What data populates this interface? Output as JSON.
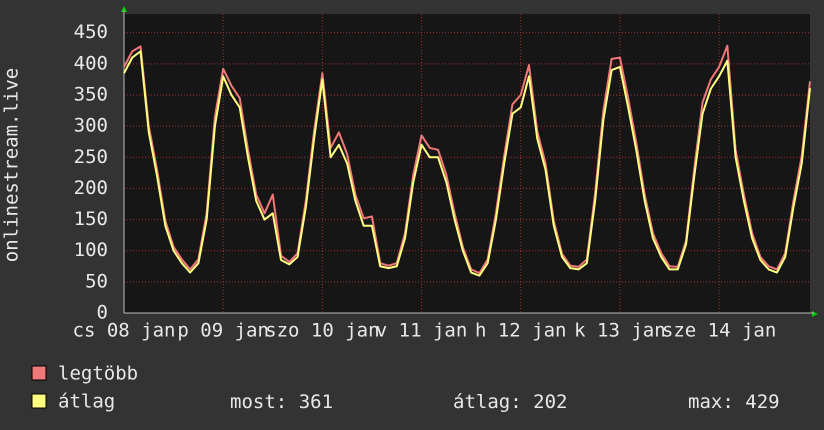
{
  "chart_data": {
    "type": "line",
    "y_label": "onlinestream.live",
    "x": [
      0,
      2,
      4,
      6,
      8,
      10,
      12,
      14,
      16,
      18,
      20,
      22,
      24,
      26,
      28,
      30,
      32,
      34,
      36,
      38,
      40,
      42,
      44,
      46,
      48,
      50,
      52,
      54,
      56,
      58,
      60,
      62,
      64,
      66,
      68,
      70,
      72,
      74,
      76,
      78,
      80,
      82,
      84,
      86,
      88,
      90,
      92,
      94,
      96,
      98,
      100,
      102,
      104,
      106,
      108,
      110,
      112,
      114,
      116,
      118,
      120,
      122,
      124,
      126,
      128,
      130,
      132,
      134,
      136,
      138,
      140,
      142,
      144,
      146,
      148,
      150,
      152,
      154,
      156,
      158,
      160,
      162,
      164,
      166
    ],
    "xlim": [
      0,
      166
    ],
    "xticks": [
      {
        "value": 0,
        "label": "cs 08 jan"
      },
      {
        "value": 24,
        "label": "p 09 jan"
      },
      {
        "value": 48,
        "label": "szo 10 jan"
      },
      {
        "value": 72,
        "label": "v 11 jan"
      },
      {
        "value": 96,
        "label": "h 12 jan"
      },
      {
        "value": 120,
        "label": "k 13 jan"
      },
      {
        "value": 144,
        "label": "sze 14 jan"
      }
    ],
    "ylim": [
      0,
      480
    ],
    "yticks": [
      0,
      50,
      100,
      150,
      200,
      250,
      300,
      350,
      400,
      450
    ],
    "grid": true,
    "series": [
      {
        "name": "legtöbb",
        "color": "#f07878",
        "values": [
          395,
          420,
          428,
          300,
          230,
          148,
          106,
          86,
          70,
          86,
          160,
          315,
          392,
          365,
          345,
          262,
          190,
          160,
          190,
          92,
          82,
          96,
          180,
          292,
          385,
          265,
          290,
          255,
          190,
          152,
          155,
          80,
          76,
          80,
          128,
          222,
          285,
          265,
          262,
          222,
          160,
          106,
          70,
          64,
          86,
          160,
          252,
          335,
          350,
          398,
          292,
          240,
          148,
          95,
          76,
          74,
          86,
          192,
          325,
          408,
          410,
          345,
          272,
          190,
          128,
          96,
          75,
          74,
          116,
          232,
          338,
          375,
          395,
          429,
          262,
          190,
          128,
          90,
          75,
          70,
          96,
          180,
          252,
          372
        ]
      },
      {
        "name": "átlag",
        "color": "#ffff80",
        "values": [
          385,
          410,
          420,
          290,
          220,
          140,
          100,
          80,
          65,
          80,
          150,
          300,
          380,
          350,
          330,
          250,
          180,
          150,
          160,
          85,
          78,
          90,
          170,
          280,
          375,
          250,
          270,
          240,
          180,
          140,
          140,
          75,
          72,
          75,
          120,
          210,
          270,
          250,
          250,
          210,
          150,
          100,
          65,
          60,
          80,
          150,
          240,
          320,
          330,
          380,
          280,
          230,
          140,
          90,
          72,
          70,
          80,
          180,
          310,
          390,
          395,
          330,
          260,
          180,
          120,
          90,
          70,
          70,
          110,
          220,
          320,
          360,
          380,
          405,
          250,
          180,
          120,
          85,
          70,
          65,
          90,
          170,
          240,
          361
        ]
      }
    ],
    "stats": [
      {
        "label": "most:",
        "value": 361
      },
      {
        "label": "átlag:",
        "value": 202
      },
      {
        "label": "max:",
        "value": 429
      }
    ]
  }
}
